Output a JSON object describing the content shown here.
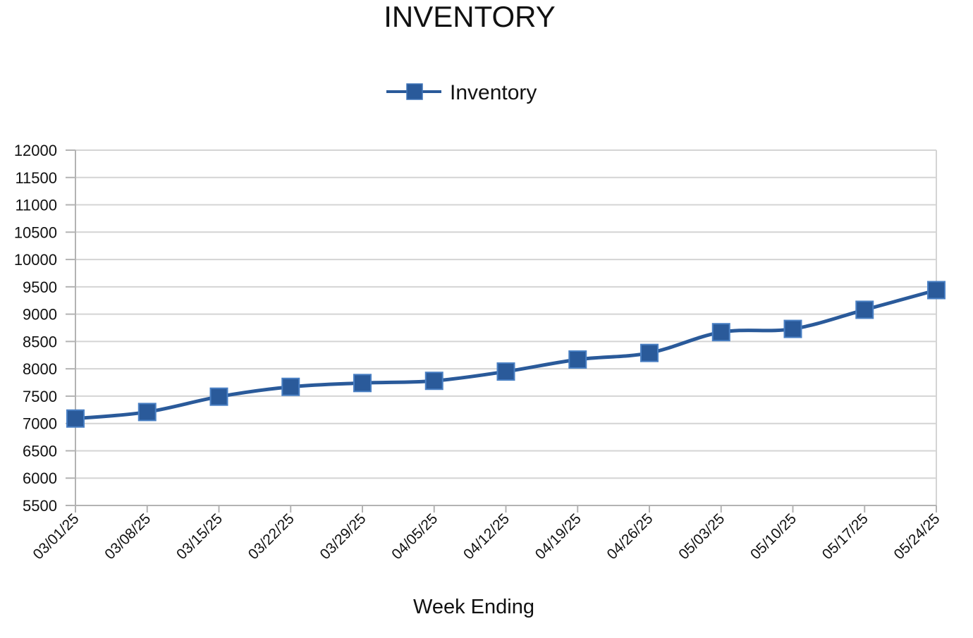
{
  "chart_data": {
    "type": "line",
    "title": "INVENTORY",
    "xlabel": "Week Ending",
    "ylabel": "",
    "categories": [
      "03/01/25",
      "03/08/25",
      "03/15/25",
      "03/22/25",
      "03/29/25",
      "04/05/25",
      "04/12/25",
      "04/19/25",
      "04/26/25",
      "05/03/25",
      "05/10/25",
      "05/17/25",
      "05/24/25"
    ],
    "series": [
      {
        "name": "Inventory",
        "values": [
          7090,
          7210,
          7490,
          7670,
          7740,
          7780,
          7950,
          8170,
          8290,
          8670,
          8730,
          9080,
          9440
        ],
        "color": "#2a5a9a",
        "marker": "square"
      }
    ],
    "ylim": [
      5500,
      12000
    ],
    "yticks": [
      5500,
      6000,
      6500,
      7000,
      7500,
      8000,
      8500,
      9000,
      9500,
      10000,
      10500,
      11000,
      11500,
      12000
    ],
    "grid": true,
    "legend_position": "top-center"
  }
}
